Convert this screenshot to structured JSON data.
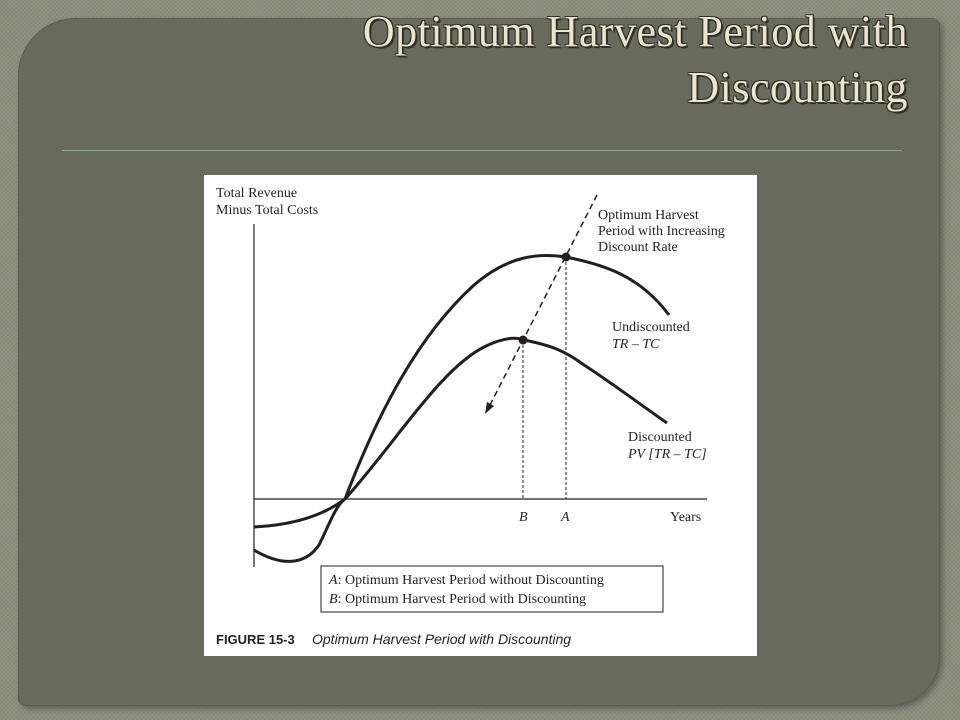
{
  "slide": {
    "title": "Optimum Harvest Period with Discounting"
  },
  "figure": {
    "y_axis_label_line1": "Total Revenue",
    "y_axis_label_line2": "Minus Total Costs",
    "x_axis_label": "Years",
    "arrow_label_line1": "Optimum Harvest",
    "arrow_label_line2": "Period with Increasing",
    "arrow_label_line3": "Discount Rate",
    "undiscounted_label_line1": "Undiscounted",
    "undiscounted_label_line2": "TR – TC",
    "discounted_label_line1": "Discounted",
    "discounted_label_line2": "PV [TR – TC]",
    "tick_b": "B",
    "tick_a": "A",
    "legend_a_key": "A",
    "legend_a_text": ": Optimum Harvest Period without Discounting",
    "legend_b_key": "B",
    "legend_b_text": ": Optimum Harvest Period with Discounting",
    "caption_number": "FIGURE 15-3",
    "caption_text": "Optimum Harvest Period with Discounting"
  }
}
